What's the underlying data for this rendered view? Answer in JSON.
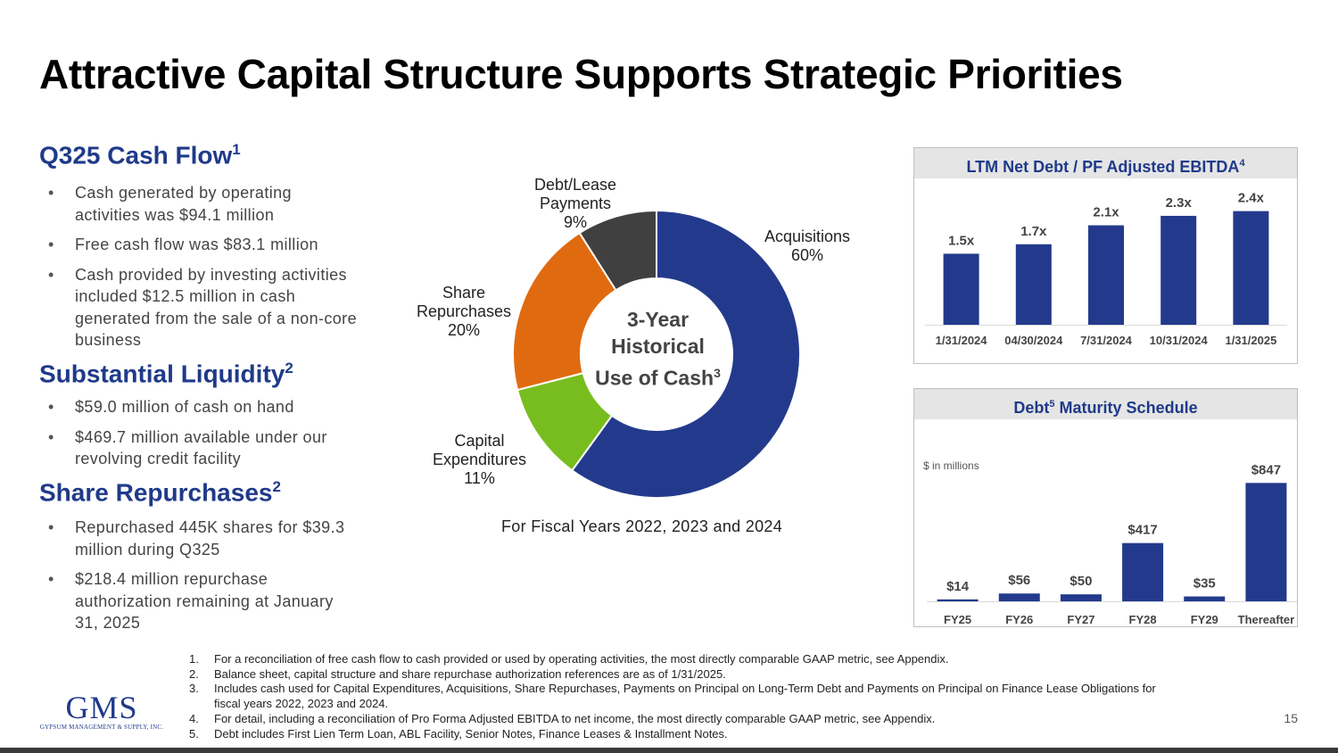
{
  "title": "Attractive Capital Structure Supports Strategic Priorities",
  "cash_flow": {
    "heading": "Q325 Cash Flow",
    "sup": "1",
    "bullets": [
      "Cash generated by operating activities was $94.1 million",
      "Free cash flow was $83.1 million",
      "Cash provided by investing activities included $12.5 million in cash generated from the sale of a non-core business"
    ]
  },
  "liquidity": {
    "heading": "Substantial Liquidity",
    "sup": "2",
    "bullets": [
      "$59.0 million of cash on hand",
      "$469.7 million available under our revolving credit facility"
    ]
  },
  "repurchases": {
    "heading": "Share Repurchases",
    "sup": "2",
    "bullets": [
      "Repurchased 445K shares for $39.3 million during Q325",
      "$218.4 million repurchase authorization remaining at January 31, 2025"
    ]
  },
  "donut": {
    "center_lines": [
      "3-Year",
      "Historical",
      "Use of Cash"
    ],
    "center_sup": "3",
    "caption": "For Fiscal Years 2022, 2023 and 2024"
  },
  "leverage_panel": {
    "heading": "LTM Net Debt / PF Adjusted EBITDA",
    "sup": "4"
  },
  "maturity_panel": {
    "heading": "Debt",
    "sup": "5",
    "heading_rest": " Maturity Schedule",
    "units": "$ in millions"
  },
  "chart_data": [
    {
      "type": "pie",
      "title": "3-Year Historical Use of Cash",
      "subtitle": "For Fiscal Years 2022, 2023 and 2024",
      "categories": [
        "Acquisitions",
        "Capital Expenditures",
        "Share Repurchases",
        "Debt/Lease Payments"
      ],
      "values": [
        60,
        11,
        20,
        9
      ],
      "label_lines": [
        [
          "Acquisitions"
        ],
        [
          "Capital",
          "Expenditures"
        ],
        [
          "Share",
          "Repurchases"
        ],
        [
          "Debt/Lease",
          "Payments"
        ]
      ],
      "value_labels": [
        "60%",
        "11%",
        "20%",
        "9%"
      ],
      "colors": [
        "#233a8c",
        "#78bd1f",
        "#e06a10",
        "#404040"
      ]
    },
    {
      "type": "bar",
      "title": "LTM Net Debt / PF Adjusted EBITDA",
      "categories": [
        "1/31/2024",
        "04/30/2024",
        "7/31/2024",
        "10/31/2024",
        "1/31/2025"
      ],
      "values": [
        1.5,
        1.7,
        2.1,
        2.3,
        2.4
      ],
      "value_labels": [
        "1.5x",
        "1.7x",
        "2.1x",
        "2.3x",
        "2.4x"
      ],
      "ylim": [
        0,
        2.6
      ],
      "color": "#233a8c"
    },
    {
      "type": "bar",
      "title": "Debt Maturity Schedule",
      "ylabel": "$ in millions",
      "categories": [
        "FY25",
        "FY26",
        "FY27",
        "FY28",
        "FY29",
        "Thereafter"
      ],
      "values": [
        14,
        56,
        50,
        417,
        35,
        847
      ],
      "value_labels": [
        "$14",
        "$56",
        "$50",
        "$417",
        "$35",
        "$847"
      ],
      "ylim": [
        0,
        900
      ],
      "color": "#233a8c"
    }
  ],
  "footnotes": [
    {
      "num": "1.",
      "text": "For a reconciliation of free cash flow to cash provided or used by operating activities, the most directly comparable GAAP metric, see Appendix."
    },
    {
      "num": "2.",
      "text": "Balance sheet, capital structure and share repurchase authorization references are as of 1/31/2025."
    },
    {
      "num": "3.",
      "text": "Includes cash used for Capital Expenditures, Acquisitions, Share Repurchases, Payments on Principal on Long-Term Debt and Payments on Principal on Finance Lease Obligations for fiscal years 2022, 2023 and 2024."
    },
    {
      "num": "4.",
      "text": "For detail, including a reconciliation of Pro Forma Adjusted EBITDA to net income, the most directly comparable GAAP metric, see Appendix."
    },
    {
      "num": "5.",
      "text": "Debt includes First Lien Term Loan, ABL Facility, Senior Notes, Finance Leases & Installment Notes."
    }
  ],
  "logo": {
    "text": "GMS",
    "subtext": "GYPSUM MANAGEMENT & SUPPLY, INC."
  },
  "page_number": "15"
}
